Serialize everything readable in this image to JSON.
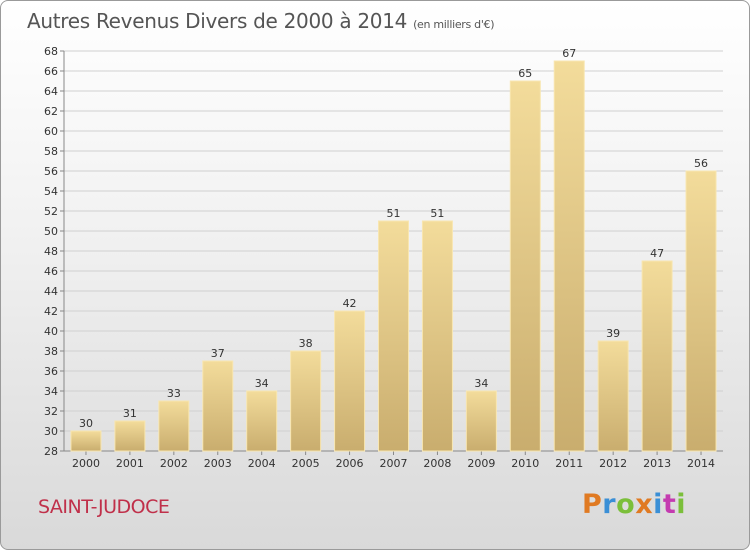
{
  "title": "Autres Revenus Divers de 2000 à 2014",
  "unit": "(en milliers d'€)",
  "commune": "SAINT-JUDOCE",
  "brand": {
    "letters": [
      "P",
      "r",
      "o",
      "x",
      "i",
      "t",
      "i"
    ],
    "colors": [
      "#e07a22",
      "#3a8fd6",
      "#7bbf3a",
      "#e07a22",
      "#3a8fd6",
      "#c43bb0",
      "#7bbf3a"
    ]
  },
  "colors": {
    "bar_light": "#f3dc9b",
    "bar_dark": "#c9ad6e",
    "bar_edge": "#f8e6b0",
    "title": "#555555",
    "commune": "#c0304a"
  },
  "chart_data": {
    "type": "bar",
    "categories": [
      "2000",
      "2001",
      "2002",
      "2003",
      "2004",
      "2005",
      "2006",
      "2007",
      "2008",
      "2009",
      "2010",
      "2011",
      "2012",
      "2013",
      "2014"
    ],
    "values": [
      30,
      31,
      33,
      37,
      34,
      38,
      42,
      51,
      51,
      34,
      65,
      67,
      39,
      47,
      56
    ],
    "ylim": [
      28,
      68
    ],
    "yticks": [
      28,
      30,
      32,
      34,
      36,
      38,
      40,
      42,
      44,
      46,
      48,
      50,
      52,
      54,
      56,
      58,
      60,
      62,
      64,
      66,
      68
    ],
    "grid": true
  }
}
